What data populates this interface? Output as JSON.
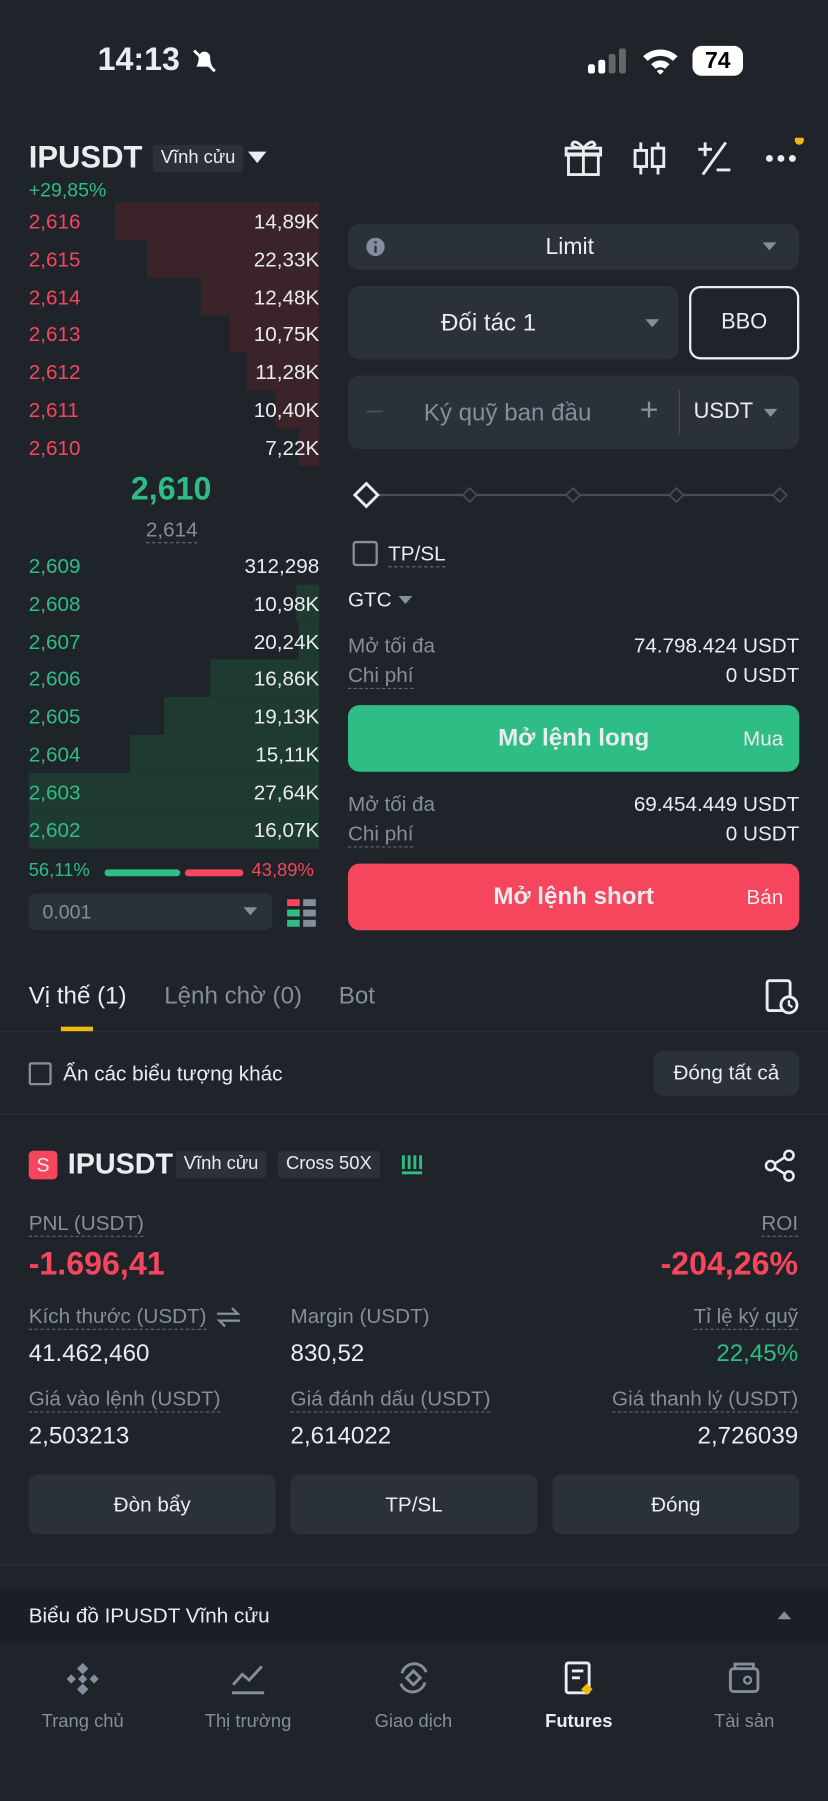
{
  "status_bar": {
    "time": "14:13",
    "battery": "74"
  },
  "header": {
    "symbol": "IPUSDT",
    "contract_type": "Vĩnh cửu",
    "change": "+29,85%"
  },
  "order_book": {
    "asks": [
      [
        "2,616",
        "14,89K"
      ],
      [
        "2,615",
        "22,33K"
      ],
      [
        "2,614",
        "12,48K"
      ],
      [
        "2,613",
        "10,75K"
      ],
      [
        "2,612",
        "11,28K"
      ],
      [
        "2,611",
        "10,40K"
      ],
      [
        "2,610",
        "7,22K"
      ]
    ],
    "last_price": "2,610",
    "mark_price": "2,614",
    "bids": [
      [
        "2,609",
        "312,298"
      ],
      [
        "2,608",
        "10,98K"
      ],
      [
        "2,607",
        "20,24K"
      ],
      [
        "2,606",
        "16,86K"
      ],
      [
        "2,605",
        "19,13K"
      ],
      [
        "2,604",
        "15,11K"
      ],
      [
        "2,603",
        "27,64K"
      ],
      [
        "2,602",
        "16,07K"
      ]
    ],
    "buy_ratio": "56,11%",
    "sell_ratio": "43,89%",
    "precision": "0.001"
  },
  "order_form": {
    "order_type": "Limit",
    "account": "Đối tác 1",
    "bbo": "BBO",
    "amount_placeholder": "Ký quỹ ban đầu",
    "currency": "USDT",
    "tpsl": "TP/SL",
    "tif": "GTC",
    "long": {
      "max_label": "Mở tối đa",
      "max_value": "74.798.424 USDT",
      "cost_label": "Chi phí",
      "cost_value": "0 USDT",
      "button": "Mở lệnh long",
      "side": "Mua"
    },
    "short": {
      "max_label": "Mở tối đa",
      "max_value": "69.454.449 USDT",
      "cost_label": "Chi phí",
      "cost_value": "0 USDT",
      "button": "Mở lệnh short",
      "side": "Bán"
    }
  },
  "tabs": [
    "Vị thế (1)",
    "Lệnh chờ (0)",
    "Bot"
  ],
  "filter": {
    "label": "Ẩn các biểu tượng khác",
    "close_all": "Đóng tất cả"
  },
  "position": {
    "badge": "S",
    "symbol": "IPUSDT",
    "tags": [
      "Vĩnh cửu",
      "Cross 50X"
    ],
    "pnl_label": "PNL (USDT)",
    "pnl": "-1.696,41",
    "roi_label": "ROI",
    "roi": "-204,26%",
    "fields": [
      {
        "label": "Kích thước (USDT)",
        "value": "41.462,460"
      },
      {
        "label": "Margin (USDT)",
        "value": "830,52"
      },
      {
        "label": "Tỉ lệ ký quỹ",
        "value": "22,45%"
      },
      {
        "label": "Giá vào lệnh (USDT)",
        "value": "2,503213"
      },
      {
        "label": "Giá đánh dấu (USDT)",
        "value": "2,614022"
      },
      {
        "label": "Giá thanh lý (USDT)",
        "value": "2,726039"
      }
    ],
    "buttons": [
      "Đòn bẩy",
      "TP/SL",
      "Đóng"
    ]
  },
  "chart_section": "Biểu đồ IPUSDT Vĩnh cửu",
  "nav": [
    "Trang chủ",
    "Thị trường",
    "Giao dịch",
    "Futures",
    "Tài sản"
  ]
}
